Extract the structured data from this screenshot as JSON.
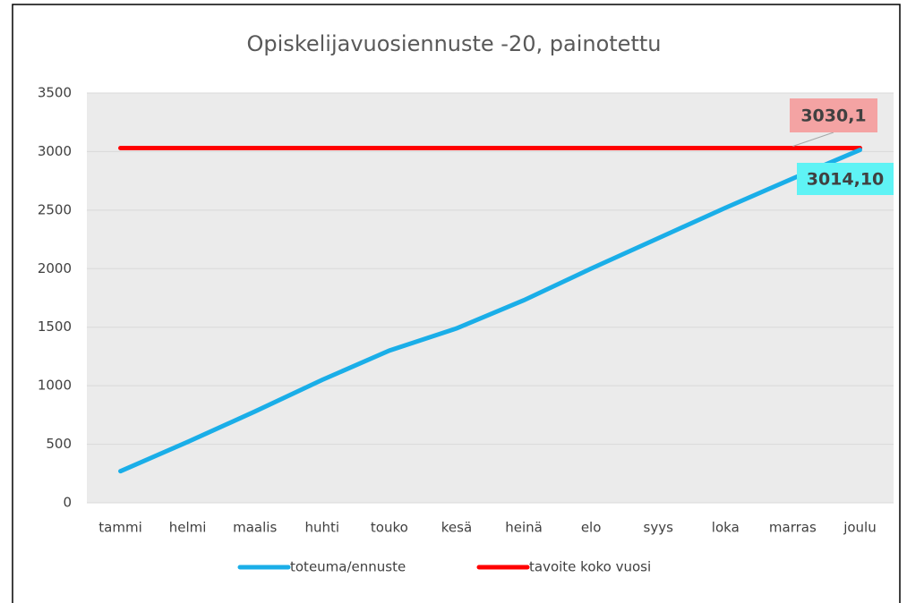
{
  "chart_data": {
    "type": "line",
    "title": "Opiskelijavuosiennuste -20, painotettu",
    "categories": [
      "tammi",
      "helmi",
      "maalis",
      "huhti",
      "touko",
      "kesä",
      "heinä",
      "elo",
      "syys",
      "loka",
      "marras",
      "joulu"
    ],
    "series": [
      {
        "name": "toteuma/ennuste",
        "color": "#1aaee8",
        "values": [
          270,
          520,
          780,
          1050,
          1300,
          1490,
          1730,
          2000,
          2260,
          2520,
          2770,
          3014.1
        ],
        "value_labels": [
          null,
          null,
          null,
          null,
          null,
          null,
          null,
          null,
          null,
          null,
          null,
          "3014,10"
        ],
        "label_color": "#5ff3f5"
      },
      {
        "name": "tavoite koko vuosi",
        "color": "#ff0000",
        "values": [
          3030.1,
          3030.1,
          3030.1,
          3030.1,
          3030.1,
          3030.1,
          3030.1,
          3030.1,
          3030.1,
          3030.1,
          3030.1,
          3030.1
        ],
        "value_labels": [
          null,
          null,
          null,
          null,
          null,
          null,
          null,
          null,
          null,
          null,
          null,
          "3030,1"
        ],
        "label_color": "#f4a3a3"
      }
    ],
    "ylim": [
      0,
      3500
    ],
    "yticks": [
      0,
      500,
      1000,
      1500,
      2000,
      2500,
      3000,
      3500
    ],
    "grid": true,
    "legend": "bottom"
  }
}
